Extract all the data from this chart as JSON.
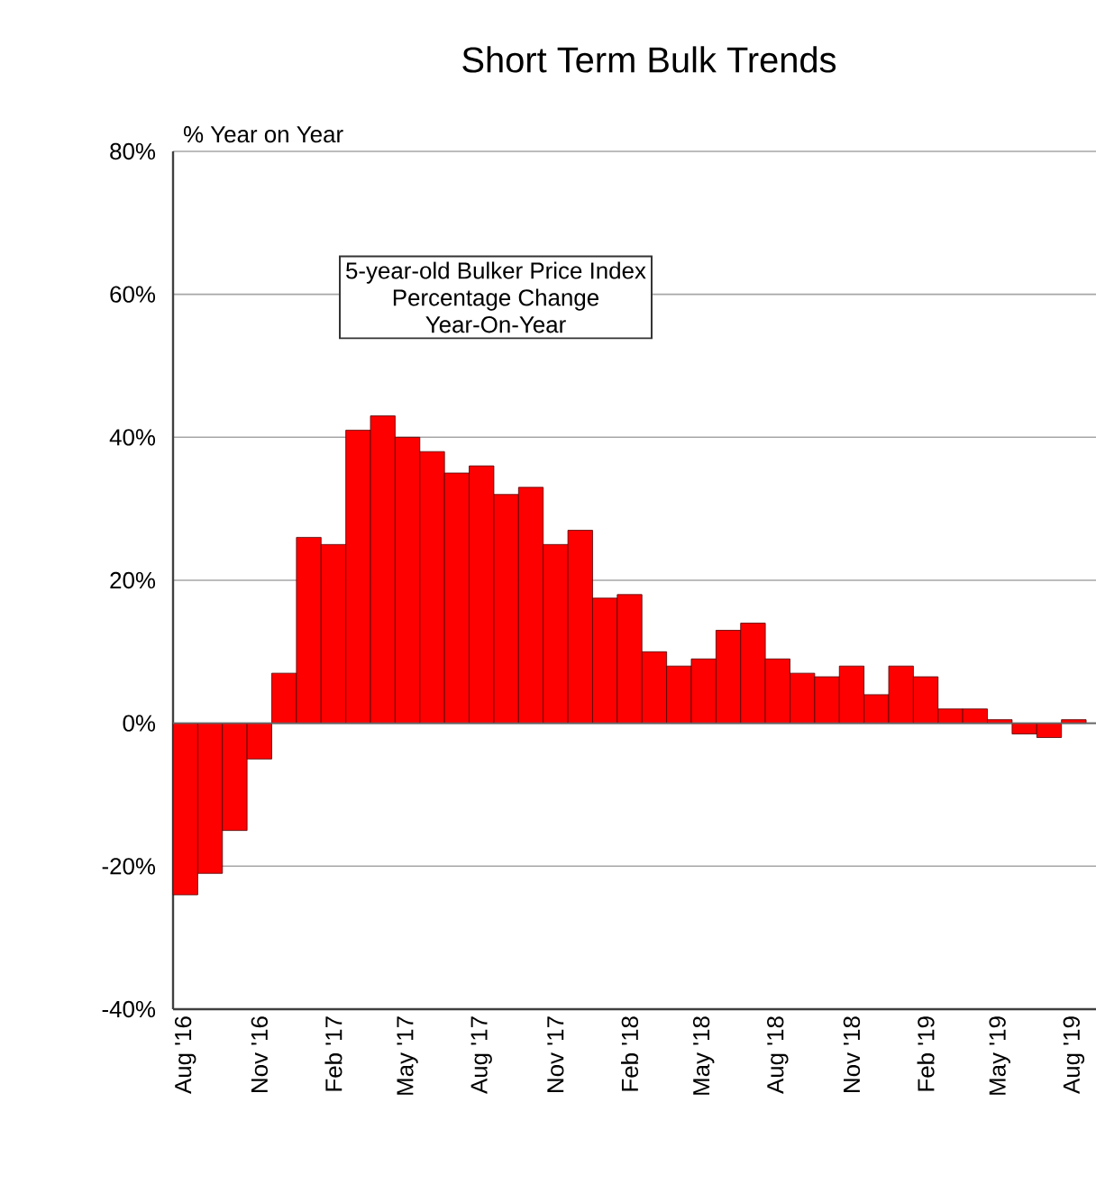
{
  "chart_data": {
    "type": "bar",
    "title": "Short Term Bulk Trends",
    "ylabel": "% Year on Year",
    "annotations": [
      "5-year-old Bulker Price Index",
      "Percentage Change",
      "Year-On-Year"
    ],
    "categories": [
      "Aug '16",
      null,
      null,
      "Nov '16",
      null,
      null,
      "Feb '17",
      null,
      null,
      "May '17",
      null,
      null,
      "Aug '17",
      null,
      null,
      "Nov '17",
      null,
      null,
      "Feb '18",
      null,
      null,
      "May '18",
      null,
      null,
      "Aug '18",
      null,
      null,
      "Nov '18",
      null,
      null,
      "Feb '19",
      null,
      null,
      "May '19",
      null,
      null,
      "Aug '19"
    ],
    "values": [
      -24,
      -21,
      -15,
      -5,
      7,
      26,
      25,
      41,
      43,
      40,
      38,
      35,
      36,
      32,
      33,
      25,
      27,
      17.5,
      18,
      10,
      8,
      9,
      13,
      14,
      9,
      7,
      6.5,
      8,
      4,
      8,
      6.5,
      2,
      2,
      0.5,
      -1.5,
      -2,
      0.5
    ],
    "color": "#ff0000",
    "ylim": [
      -40,
      80
    ],
    "yticks": [
      {
        "value": -40,
        "label": "-40%"
      },
      {
        "value": -20,
        "label": "-20%"
      },
      {
        "value": 0,
        "label": "0%"
      },
      {
        "value": 20,
        "label": "20%"
      },
      {
        "value": 40,
        "label": "40%"
      },
      {
        "value": 60,
        "label": "60%"
      },
      {
        "value": 80,
        "label": "80%"
      }
    ],
    "grid": "y"
  }
}
